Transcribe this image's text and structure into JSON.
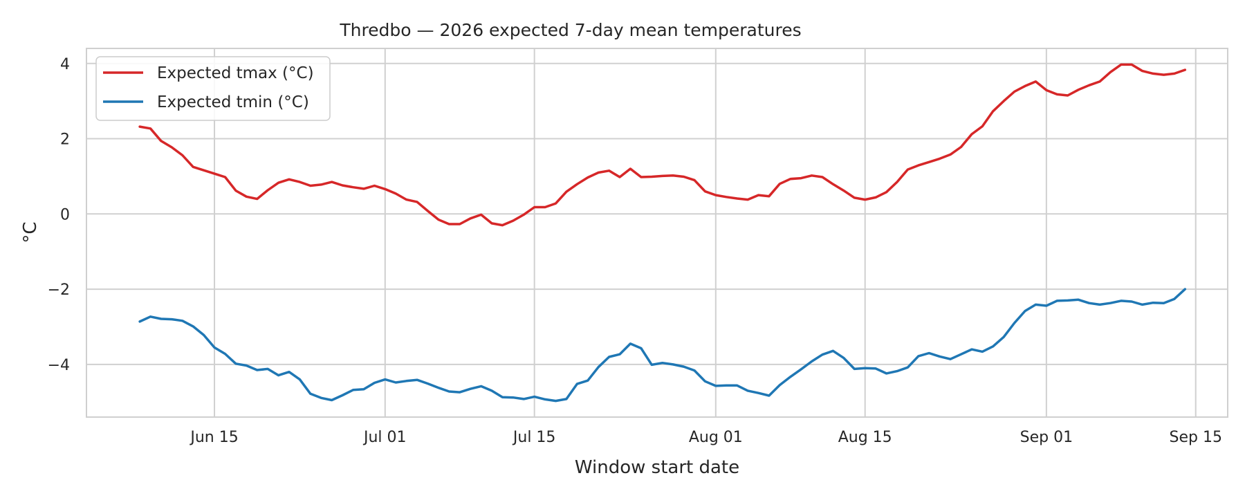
{
  "chart_data": {
    "type": "line",
    "title": "Thredbo — 2026 expected 7-day mean temperatures",
    "xlabel": "Window start date",
    "ylabel": "°C",
    "x_start": "2026-06-08",
    "x_step_days": 1,
    "xlim": [
      "2026-06-03",
      "2026-09-18"
    ],
    "ylim": [
      -5.4,
      4.4
    ],
    "x_ticks": [
      {
        "date": "2026-06-15",
        "label": "Jun 15"
      },
      {
        "date": "2026-07-01",
        "label": "Jul 01"
      },
      {
        "date": "2026-07-15",
        "label": "Jul 15"
      },
      {
        "date": "2026-08-01",
        "label": "Aug 01"
      },
      {
        "date": "2026-08-15",
        "label": "Aug 15"
      },
      {
        "date": "2026-09-01",
        "label": "Sep 01"
      },
      {
        "date": "2026-09-15",
        "label": "Sep 15"
      }
    ],
    "y_ticks": [
      {
        "value": 4,
        "label": "4"
      },
      {
        "value": 2,
        "label": "2"
      },
      {
        "value": 0,
        "label": "0"
      },
      {
        "value": -2,
        "label": "−2"
      },
      {
        "value": -4,
        "label": "−4"
      }
    ],
    "grid": true,
    "legend_position": "top-left",
    "series": [
      {
        "name": "Expected tmax (°C)",
        "color": "#d62728",
        "values": [
          2.32,
          2.27,
          1.94,
          1.77,
          1.56,
          1.25,
          1.16,
          1.07,
          0.98,
          0.62,
          0.46,
          0.4,
          0.63,
          0.83,
          0.92,
          0.85,
          0.75,
          0.78,
          0.85,
          0.76,
          0.71,
          0.67,
          0.75,
          0.66,
          0.54,
          0.38,
          0.32,
          0.08,
          -0.15,
          -0.27,
          -0.27,
          -0.12,
          -0.02,
          -0.25,
          -0.3,
          -0.18,
          -0.02,
          0.18,
          0.18,
          0.28,
          0.59,
          0.79,
          0.97,
          1.1,
          1.15,
          0.98,
          1.2,
          0.98,
          0.99,
          1.01,
          1.02,
          0.99,
          0.9,
          0.6,
          0.5,
          0.45,
          0.41,
          0.38,
          0.5,
          0.47,
          0.8,
          0.93,
          0.95,
          1.02,
          0.98,
          0.79,
          0.62,
          0.43,
          0.38,
          0.44,
          0.58,
          0.85,
          1.18,
          1.29,
          1.38,
          1.47,
          1.58,
          1.78,
          2.12,
          2.33,
          2.73,
          3.0,
          3.25,
          3.4,
          3.52,
          3.29,
          3.18,
          3.15,
          3.3,
          3.42,
          3.52,
          3.77,
          3.97,
          3.97,
          3.8,
          3.73,
          3.7,
          3.73,
          3.83
        ]
      },
      {
        "name": "Expected tmin (°C)",
        "color": "#1f77b4",
        "values": [
          -2.86,
          -2.73,
          -2.79,
          -2.8,
          -2.84,
          -2.99,
          -3.22,
          -3.55,
          -3.72,
          -3.98,
          -4.03,
          -4.15,
          -4.12,
          -4.29,
          -4.2,
          -4.4,
          -4.78,
          -4.89,
          -4.95,
          -4.82,
          -4.68,
          -4.66,
          -4.49,
          -4.4,
          -4.48,
          -4.44,
          -4.41,
          -4.51,
          -4.62,
          -4.72,
          -4.74,
          -4.65,
          -4.58,
          -4.7,
          -4.87,
          -4.88,
          -4.92,
          -4.86,
          -4.93,
          -4.97,
          -4.92,
          -4.52,
          -4.43,
          -4.07,
          -3.8,
          -3.73,
          -3.45,
          -3.57,
          -4.01,
          -3.96,
          -4.0,
          -4.06,
          -4.16,
          -4.45,
          -4.57,
          -4.56,
          -4.56,
          -4.7,
          -4.76,
          -4.83,
          -4.55,
          -4.33,
          -4.13,
          -3.92,
          -3.74,
          -3.64,
          -3.83,
          -4.12,
          -4.1,
          -4.11,
          -4.24,
          -4.18,
          -4.08,
          -3.78,
          -3.7,
          -3.79,
          -3.86,
          -3.73,
          -3.6,
          -3.66,
          -3.52,
          -3.27,
          -2.9,
          -2.58,
          -2.41,
          -2.44,
          -2.31,
          -2.3,
          -2.28,
          -2.37,
          -2.41,
          -2.37,
          -2.31,
          -2.33,
          -2.41,
          -2.36,
          -2.37,
          -2.26,
          -2.0
        ]
      }
    ]
  }
}
